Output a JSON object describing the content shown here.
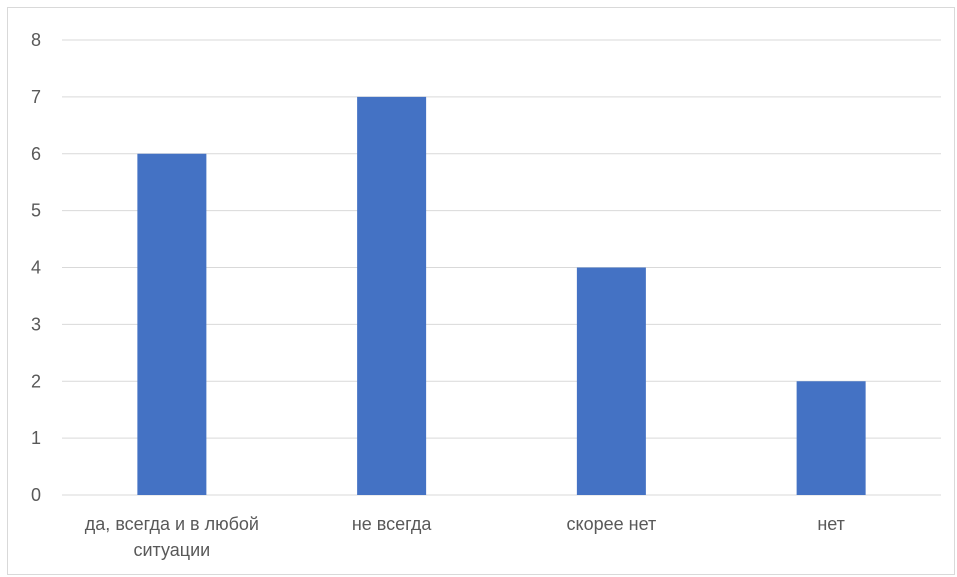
{
  "chart_data": {
    "type": "bar",
    "categories": [
      "да, всегда и в любой ситуации",
      "не всегда",
      "скорее нет",
      "нет"
    ],
    "category_label_lines": [
      [
        "да, всегда и в любой",
        "ситуации"
      ],
      [
        "не всегда"
      ],
      [
        "скорее нет"
      ],
      [
        "нет"
      ]
    ],
    "values": [
      6,
      7,
      4,
      2
    ],
    "ylim": [
      0,
      8
    ],
    "yticks": [
      "0",
      "1",
      "2",
      "3",
      "4",
      "5",
      "6",
      "7",
      "8"
    ],
    "title": "",
    "xlabel": "",
    "ylabel": "",
    "grid": true,
    "legend": "none",
    "bar_color": "#4472c4",
    "grid_color": "#d9d9d9",
    "text_color": "#595959"
  }
}
